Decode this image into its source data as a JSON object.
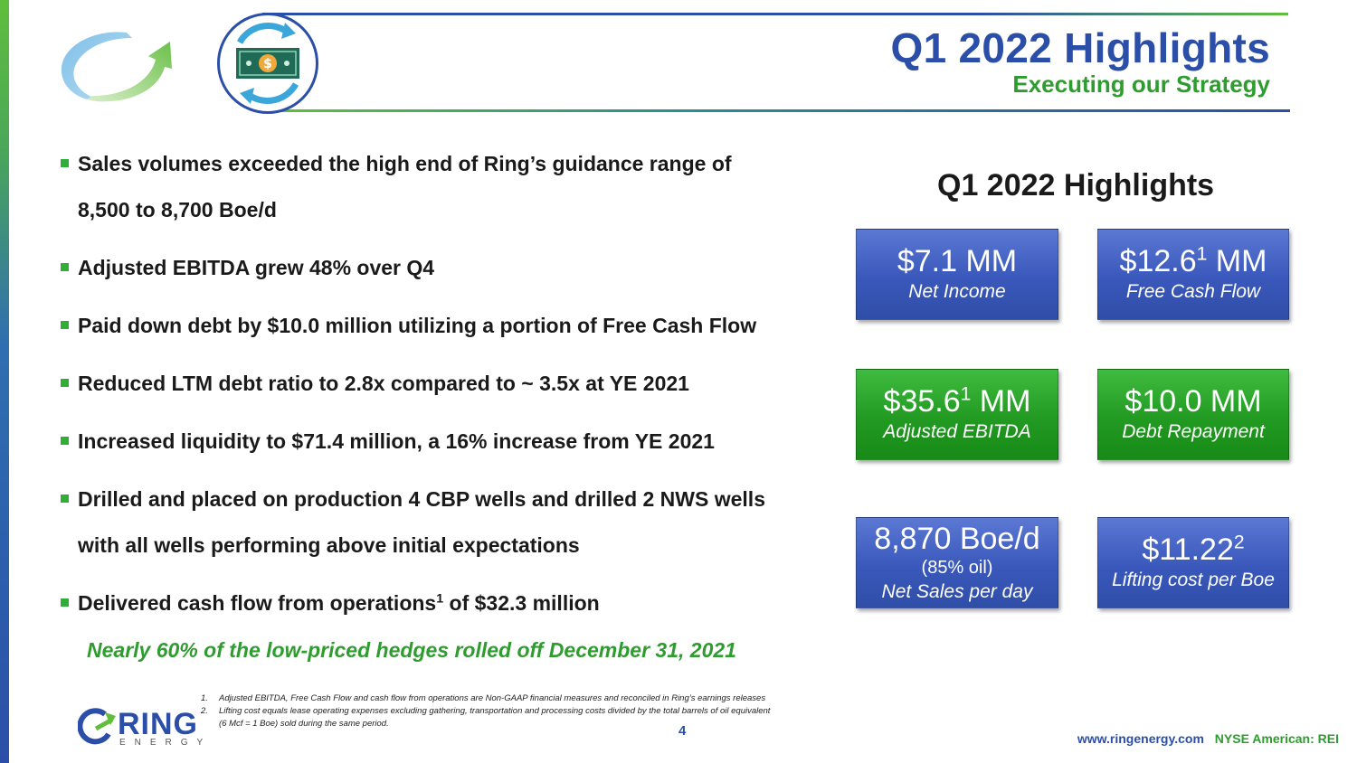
{
  "header": {
    "title": "Q1 2022 Highlights",
    "subtitle": "Executing our Strategy"
  },
  "bullets": [
    {
      "text": "Sales volumes exceeded the high end of Ring’s guidance range of",
      "line2": "8,500 to 8,700 Boe/d"
    },
    {
      "text": "Adjusted EBITDA grew 48% over Q4"
    },
    {
      "text": "Paid down debt by $10.0 million utilizing a portion of Free Cash Flow"
    },
    {
      "text": "Reduced LTM debt ratio to 2.8x compared to ~ 3.5x at YE 2021"
    },
    {
      "text": "Increased liquidity to $71.4 million, a 16% increase from YE 2021"
    },
    {
      "text": "Drilled and placed on production 4 CBP wells and drilled 2 NWS wells",
      "line2": "with all wells performing above initial expectations"
    },
    {
      "text_before": "Delivered cash flow from operations",
      "sup": "1",
      "text_after": " of $32.3 million"
    }
  ],
  "callout": "Nearly 60% of the low-priced hedges rolled off December 31, 2021",
  "panel": {
    "title": "Q1 2022 Highlights",
    "cards": [
      {
        "value": "$7.1 MM",
        "label": "Net Income",
        "color": "blue"
      },
      {
        "value_prefix": "$12.6",
        "sup": "1",
        "value_suffix": " MM",
        "label": "Free Cash Flow",
        "color": "blue"
      },
      {
        "value_prefix": "$35.6",
        "sup": "1",
        "value_suffix": " MM",
        "label": "Adjusted EBITDA",
        "color": "green"
      },
      {
        "value": "$10.0 MM",
        "label": "Debt Repayment",
        "color": "green"
      },
      {
        "value": "8,870 Boe/d",
        "sub": "(85% oil)",
        "label": "Net Sales per day",
        "color": "blue"
      },
      {
        "value_prefix": "$11.22",
        "sup": "2",
        "value_suffix": "",
        "label": "Lifting cost per Boe",
        "color": "blue"
      }
    ]
  },
  "footnotes": [
    {
      "num": "1.",
      "text": "Adjusted EBITDA, Free Cash Flow and cash flow from operations are Non-GAAP financial measures and reconciled in Ring’s earnings releases"
    },
    {
      "num": "2.",
      "text": "Lifting cost equals lease operating expenses excluding  gathering, transportation and processing costs divided by the total barrels of oil equivalent"
    },
    {
      "num": "",
      "text": "(6 Mcf = 1 Boe) sold during the same period."
    }
  ],
  "page_number": "4",
  "footer": {
    "logo_word": "RING",
    "logo_sub": "ENERGY",
    "url": "www.ringenergy.com",
    "ticker": "NYSE American: REI"
  },
  "colors": {
    "brand_blue": "#2b4fa8",
    "brand_green": "#2e9c2e",
    "bullet_green": "#2fae3a"
  },
  "icons": [
    "swirl-arrow-logo-icon",
    "money-cycle-icon",
    "ring-logo-icon"
  ]
}
